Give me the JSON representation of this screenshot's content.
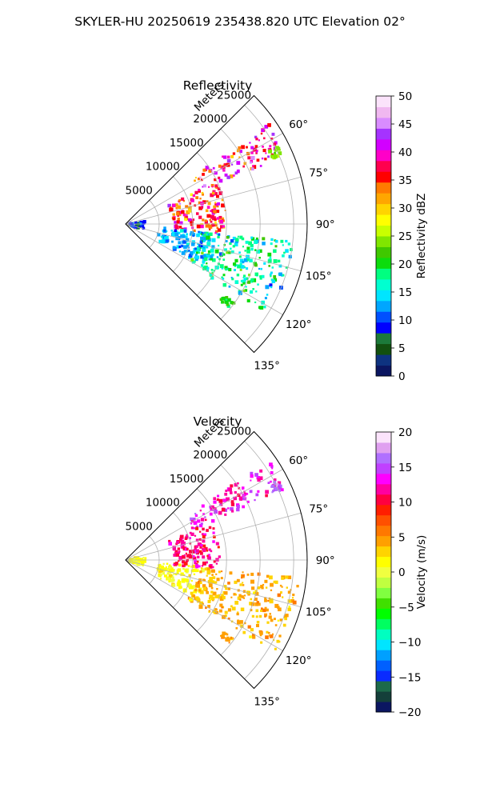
{
  "figure": {
    "suptitle": "SKYLER-HU  20250619  235438.820 UTC Elevation 02°"
  },
  "chart_data": [
    {
      "type": "heatmap",
      "projection": "polar-sector",
      "title": "Reflectivity",
      "radial_axis_label": "Meters",
      "radial_ticks": [
        "5000",
        "10000",
        "15000",
        "20000",
        "25000"
      ],
      "radial_tick_values": [
        5000,
        10000,
        15000,
        20000,
        25000
      ],
      "angle_ticks": [
        "60°",
        "75°",
        "90°",
        "105°",
        "120°",
        "135°"
      ],
      "angle_tick_values": [
        60,
        75,
        90,
        105,
        120,
        135
      ],
      "theta_range_deg": [
        45,
        135
      ],
      "r_max_m": 27000,
      "grid": true,
      "colorbar": {
        "label": "Reflectivity dBZ",
        "range": [
          0,
          50
        ],
        "ticks": [
          "0",
          "5",
          "10",
          "15",
          "20",
          "25",
          "30",
          "35",
          "40",
          "45",
          "50"
        ],
        "tick_values": [
          0,
          5,
          10,
          15,
          20,
          25,
          30,
          35,
          40,
          45,
          50
        ],
        "colors": [
          "#0b1661",
          "#0e3380",
          "#12500f",
          "#1c7a3a",
          "#0000ff",
          "#0050ff",
          "#00a6ff",
          "#00e5ff",
          "#00ffd0",
          "#00ff80",
          "#0cdc0c",
          "#3fc800",
          "#80e600",
          "#c8ff00",
          "#ffff00",
          "#ffd400",
          "#ffa600",
          "#ff7a00",
          "#ff0000",
          "#ff004e",
          "#ff00c8",
          "#d200ff",
          "#a533ff",
          "#d98cff",
          "#f0b8f0",
          "#fbe3fb"
        ]
      },
      "field_range": [
        0,
        50
      ],
      "echo_regions": [
        {
          "r0": 12000,
          "r1": 26000,
          "th0": 55,
          "th1": 67,
          "center": 38,
          "spread": 10
        },
        {
          "r0": 7000,
          "r1": 15000,
          "th0": 66,
          "th1": 96,
          "center": 36,
          "spread": 10
        },
        {
          "r0": 5000,
          "r1": 13000,
          "th0": 95,
          "th1": 118,
          "center": 13,
          "spread": 5
        },
        {
          "r0": 11000,
          "r1": 25000,
          "th0": 96,
          "th1": 122,
          "center": 17,
          "spread": 9
        },
        {
          "r0": 500,
          "r1": 3000,
          "th0": 80,
          "th1": 110,
          "center": 9,
          "spread": 4
        },
        {
          "r0": 24000,
          "r1": 25500,
          "th0": 63,
          "th1": 66,
          "center": 24,
          "spread": 3
        },
        {
          "r0": 18000,
          "r1": 20000,
          "th0": 126,
          "th1": 129,
          "center": 21,
          "spread": 3
        }
      ]
    },
    {
      "type": "heatmap",
      "projection": "polar-sector",
      "title": "Velocity",
      "radial_axis_label": "Meters",
      "radial_ticks": [
        "5000",
        "10000",
        "15000",
        "20000",
        "25000"
      ],
      "radial_tick_values": [
        5000,
        10000,
        15000,
        20000,
        25000
      ],
      "angle_ticks": [
        "60°",
        "75°",
        "90°",
        "105°",
        "120°",
        "135°"
      ],
      "angle_tick_values": [
        60,
        75,
        90,
        105,
        120,
        135
      ],
      "theta_range_deg": [
        45,
        135
      ],
      "r_max_m": 27000,
      "grid": true,
      "colorbar": {
        "label": "Velocity (m/s)",
        "range": [
          -20,
          20
        ],
        "ticks": [
          "−20",
          "−15",
          "−10",
          "−5",
          "0",
          "5",
          "10",
          "15",
          "20"
        ],
        "tick_values": [
          -20,
          -15,
          -10,
          -5,
          0,
          5,
          10,
          15,
          20
        ],
        "colors": [
          "#0b1661",
          "#143f3a",
          "#1c6a4a",
          "#0a2bff",
          "#0060ff",
          "#00a0ff",
          "#00e5ff",
          "#00ffc0",
          "#00ff60",
          "#00ff00",
          "#40e000",
          "#80ff40",
          "#c0ff40",
          "#f0ff40",
          "#ffff00",
          "#ffd400",
          "#ffa000",
          "#ff7800",
          "#ff5000",
          "#ff1e00",
          "#ff0040",
          "#ff00a0",
          "#ff00ff",
          "#c040ff",
          "#b070ff",
          "#e0a0f0",
          "#fbe3fb"
        ]
      },
      "field_range": [
        -20,
        20
      ],
      "echo_regions": [
        {
          "r0": 11000,
          "r1": 26000,
          "th0": 55,
          "th1": 66,
          "center": 13,
          "spread": 4
        },
        {
          "r0": 7000,
          "r1": 14000,
          "th0": 66,
          "th1": 96,
          "center": 11,
          "spread": 4
        },
        {
          "r0": 5000,
          "r1": 12000,
          "th0": 95,
          "th1": 118,
          "center": 1,
          "spread": 3
        },
        {
          "r0": 11000,
          "r1": 26000,
          "th0": 96,
          "th1": 122,
          "center": 4,
          "spread": 3
        },
        {
          "r0": 500,
          "r1": 3000,
          "th0": 80,
          "th1": 110,
          "center": 1,
          "spread": 2
        },
        {
          "r0": 24000,
          "r1": 25500,
          "th0": 63,
          "th1": 66,
          "center": 16,
          "spread": 2
        },
        {
          "r0": 18000,
          "r1": 20000,
          "th0": 126,
          "th1": 129,
          "center": 5,
          "spread": 3
        }
      ]
    }
  ]
}
